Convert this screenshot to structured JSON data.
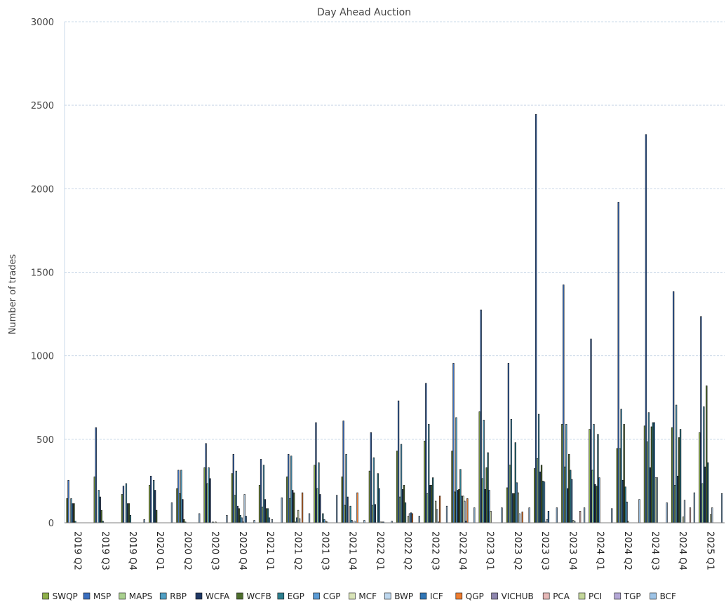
{
  "chart_data": {
    "type": "bar",
    "title": "Day Ahead Auction",
    "xlabel": "",
    "ylabel": "Number of trades",
    "ylim": [
      0,
      3000
    ],
    "yticks": [
      0,
      500,
      1000,
      1500,
      2000,
      2500,
      3000
    ],
    "grid": true,
    "legend_position": "bottom",
    "categories": [
      "2019 Q2",
      "2019 Q3",
      "2019 Q4",
      "2020 Q1",
      "2020 Q2",
      "2020 Q3",
      "2020 Q4",
      "2021 Q1",
      "2021 Q2",
      "2021 Q3",
      "2021 Q4",
      "2022 Q1",
      "2022 Q2",
      "2022 Q3",
      "2022 Q4",
      "2023 Q1",
      "2023 Q2",
      "2023 Q3",
      "2023 Q4",
      "2024 Q1",
      "2024 Q2",
      "2024 Q3",
      "2024 Q4",
      "2025 Q1"
    ],
    "series": [
      {
        "name": "SWQP",
        "color": "#8fb04a",
        "values": [
          145,
          275,
          170,
          225,
          205,
          330,
          295,
          225,
          275,
          345,
          275,
          310,
          430,
          490,
          430,
          665,
          210,
          325,
          590,
          560,
          445,
          580,
          570,
          540
        ]
      },
      {
        "name": "MSP",
        "color": "#3a6fbf",
        "values": [
          255,
          570,
          220,
          280,
          315,
          475,
          410,
          380,
          410,
          600,
          610,
          540,
          730,
          835,
          955,
          1275,
          955,
          2445,
          1425,
          1100,
          1920,
          2325,
          1385,
          1235
        ]
      },
      {
        "name": "MAPS",
        "color": "#a9d08e",
        "values": [
          0,
          0,
          0,
          0,
          175,
          235,
          165,
          95,
          145,
          205,
          105,
          105,
          155,
          175,
          185,
          265,
          345,
          385,
          335,
          315,
          445,
          485,
          225,
          235
        ]
      },
      {
        "name": "RBP",
        "color": "#4f9fc4",
        "values": [
          145,
          195,
          235,
          255,
          315,
          330,
          310,
          345,
          400,
          360,
          410,
          390,
          470,
          590,
          630,
          615,
          620,
          650,
          590,
          590,
          680,
          660,
          705,
          695
        ]
      },
      {
        "name": "WCFA",
        "color": "#1f3864",
        "values": [
          115,
          155,
          115,
          195,
          140,
          265,
          100,
          140,
          195,
          170,
          155,
          110,
          200,
          225,
          195,
          200,
          175,
          305,
          205,
          230,
          255,
          330,
          280,
          335
        ]
      },
      {
        "name": "WCFB",
        "color": "#4e6e2e",
        "values": [
          115,
          75,
          115,
          75,
          20,
          0,
          85,
          85,
          180,
          0,
          0,
          0,
          225,
          225,
          200,
          330,
          175,
          345,
          410,
          220,
          590,
          575,
          510,
          820
        ]
      },
      {
        "name": "EGP",
        "color": "#2e7f8f",
        "values": [
          10,
          10,
          45,
          0,
          5,
          5,
          45,
          85,
          5,
          55,
          100,
          295,
          120,
          270,
          320,
          420,
          480,
          250,
          315,
          530,
          215,
          600,
          560,
          360
        ]
      },
      {
        "name": "CGP",
        "color": "#5b9bd5",
        "values": [
          0,
          0,
          0,
          0,
          0,
          0,
          30,
          30,
          30,
          20,
          15,
          205,
          0,
          0,
          160,
          195,
          240,
          245,
          260,
          270,
          125,
          600,
          0,
          0
        ]
      },
      {
        "name": "MCF",
        "color": "#d9e4b8",
        "values": [
          0,
          0,
          0,
          0,
          0,
          5,
          5,
          0,
          75,
          10,
          0,
          5,
          40,
          130,
          160,
          70,
          180,
          5,
          15,
          0,
          10,
          270,
          35,
          50
        ]
      },
      {
        "name": "BWP",
        "color": "#bdd7ee",
        "values": [
          0,
          0,
          0,
          0,
          0,
          0,
          170,
          20,
          25,
          5,
          10,
          5,
          55,
          80,
          130,
          0,
          55,
          20,
          10,
          0,
          0,
          270,
          135,
          90
        ]
      },
      {
        "name": "ICF",
        "color": "#2f75b5",
        "values": [
          0,
          0,
          0,
          0,
          0,
          0,
          40,
          0,
          0,
          0,
          0,
          5,
          60,
          5,
          10,
          0,
          0,
          70,
          0,
          0,
          0,
          0,
          0,
          0
        ]
      },
      {
        "name": "QGP",
        "color": "#ed7d31",
        "values": [
          0,
          0,
          0,
          0,
          0,
          0,
          0,
          0,
          180,
          0,
          180,
          0,
          55,
          160,
          145,
          0,
          65,
          0,
          0,
          0,
          0,
          0,
          0,
          0
        ]
      },
      {
        "name": "VICHUB",
        "color": "#8e86ae",
        "values": [
          0,
          0,
          0,
          0,
          0,
          0,
          0,
          0,
          0,
          0,
          0,
          0,
          0,
          0,
          0,
          0,
          0,
          0,
          0,
          0,
          0,
          0,
          0,
          0
        ]
      },
      {
        "name": "PCA",
        "color": "#e6b8b7",
        "values": [
          0,
          0,
          0,
          0,
          0,
          0,
          0,
          0,
          0,
          0,
          0,
          0,
          0,
          0,
          0,
          0,
          0,
          0,
          70,
          0,
          0,
          0,
          90,
          0
        ]
      },
      {
        "name": "PCI",
        "color": "#c4d79b",
        "values": [
          0,
          0,
          0,
          0,
          0,
          0,
          0,
          0,
          0,
          0,
          0,
          0,
          0,
          0,
          0,
          0,
          0,
          0,
          0,
          0,
          0,
          0,
          0,
          0
        ]
      },
      {
        "name": "TGP",
        "color": "#b4a7d6",
        "values": [
          0,
          0,
          0,
          0,
          0,
          0,
          0,
          0,
          0,
          0,
          0,
          0,
          0,
          0,
          0,
          0,
          0,
          0,
          0,
          0,
          0,
          0,
          0,
          0
        ]
      },
      {
        "name": "BCF",
        "color": "#9dc3e6",
        "values": [
          0,
          0,
          20,
          120,
          55,
          45,
          15,
          150,
          55,
          165,
          15,
          10,
          40,
          100,
          90,
          90,
          90,
          90,
          90,
          85,
          140,
          120,
          180,
          175
        ]
      }
    ]
  }
}
